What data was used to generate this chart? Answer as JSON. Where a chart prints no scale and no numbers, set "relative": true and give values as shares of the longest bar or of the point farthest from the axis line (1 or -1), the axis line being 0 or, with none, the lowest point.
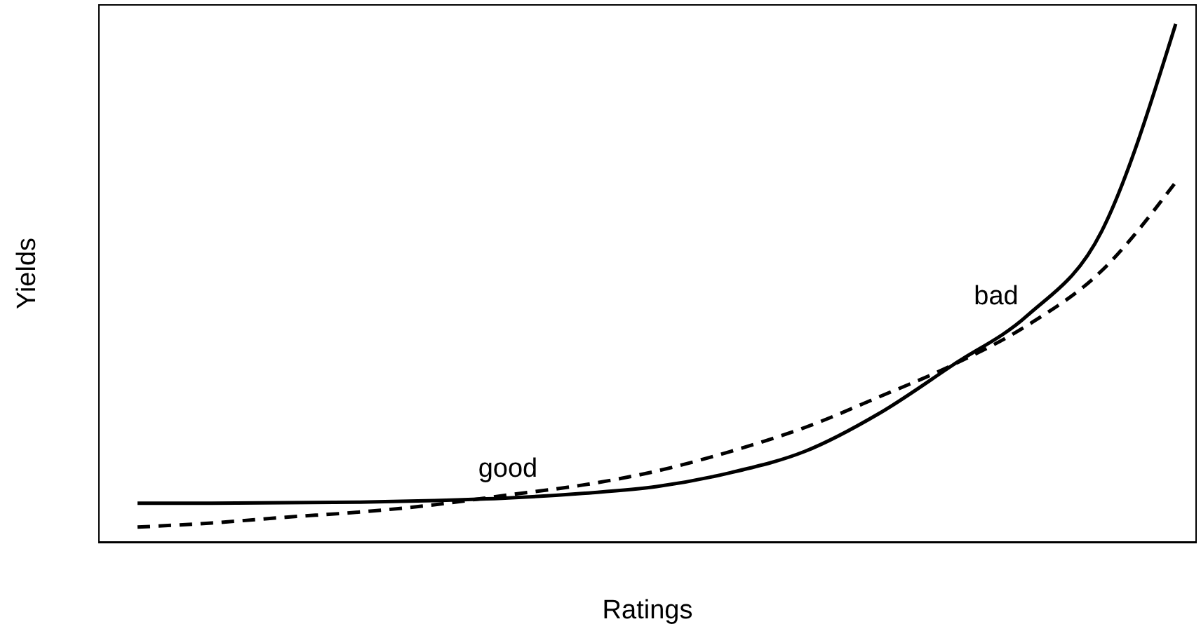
{
  "chart_data": {
    "type": "line",
    "relative": true,
    "xlabel": "Ratings",
    "ylabel": "Yields",
    "categories": [
      null,
      null,
      null,
      null,
      null,
      null,
      null,
      null,
      null,
      null,
      null,
      null,
      null,
      null,
      null
    ],
    "series": [
      {
        "color": "#000000",
        "line_style": "solid",
        "values": [
          0.076,
          0.076,
          0.077,
          0.078,
          0.081,
          0.086,
          0.095,
          0.108,
          0.135,
          0.176,
          0.249,
          0.343,
          0.438,
          0.6,
          1
        ]
      },
      {
        "color": "#000000",
        "line_style": "dashed",
        "values": [
          0.03,
          0.038,
          0.049,
          0.059,
          0.073,
          0.092,
          0.111,
          0.138,
          0.176,
          0.222,
          0.281,
          0.343,
          0.419,
          0.524,
          0.695
        ]
      }
    ],
    "annotations": [
      "good",
      "bad"
    ],
    "grid": false,
    "marker": "none"
  }
}
